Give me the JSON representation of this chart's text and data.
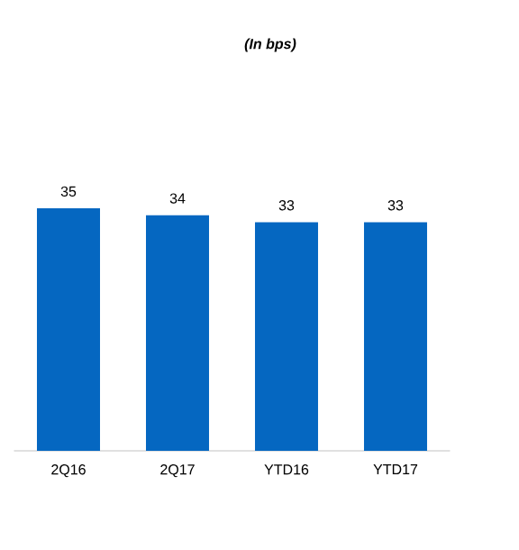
{
  "chart_data": {
    "type": "bar",
    "title": "(In bps)",
    "categories": [
      "2Q16",
      "2Q17",
      "YTD16",
      "YTD17"
    ],
    "values": [
      35,
      34,
      33,
      33
    ],
    "color": "#0567c1",
    "data_labels": true
  }
}
